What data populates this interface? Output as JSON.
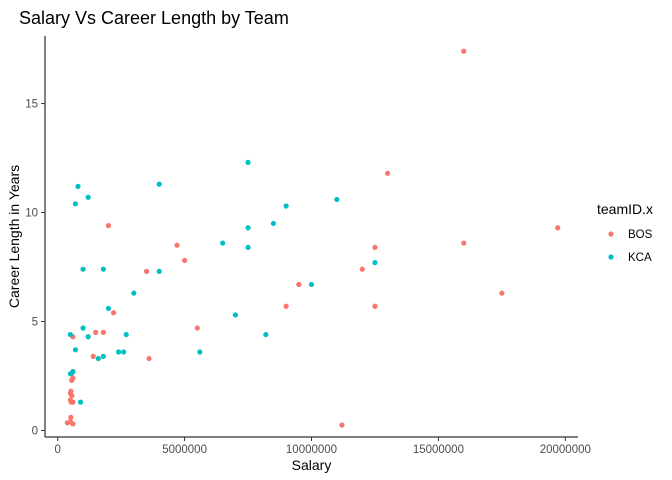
{
  "chart_data": {
    "type": "scatter",
    "title": "Salary Vs Career Length by Team",
    "xlabel": "Salary",
    "ylabel": "Career Length in Years",
    "xlim": [
      -500000,
      20500000
    ],
    "ylim": [
      -0.3,
      18.1
    ],
    "x_ticks": [
      0,
      5000000,
      10000000,
      15000000,
      20000000
    ],
    "x_tick_labels": [
      "0",
      "5000000",
      "10000000",
      "15000000",
      "20000000"
    ],
    "y_ticks": [
      0,
      5,
      10,
      15
    ],
    "y_tick_labels": [
      "0",
      "5",
      "10",
      "15"
    ],
    "grid": false,
    "legend": {
      "title": "teamID.x",
      "position": "right"
    },
    "series": [
      {
        "name": "BOS",
        "color": "#F8766D",
        "points": [
          [
            16000000,
            17.4
          ],
          [
            13000000,
            11.8
          ],
          [
            19700000,
            9.3
          ],
          [
            16000000,
            8.6
          ],
          [
            12500000,
            8.4
          ],
          [
            2000000,
            9.4
          ],
          [
            4700000,
            8.5
          ],
          [
            5000000,
            7.8
          ],
          [
            12000000,
            7.4
          ],
          [
            3500000,
            7.3
          ],
          [
            9500000,
            6.7
          ],
          [
            17500000,
            6.3
          ],
          [
            9000000,
            5.7
          ],
          [
            12500000,
            5.7
          ],
          [
            2200000,
            5.4
          ],
          [
            5500000,
            4.7
          ],
          [
            1500000,
            4.5
          ],
          [
            1800000,
            4.5
          ],
          [
            600000,
            4.3
          ],
          [
            1400000,
            3.4
          ],
          [
            3600000,
            3.3
          ],
          [
            11200000,
            0.25
          ],
          [
            600000,
            2.7
          ],
          [
            550000,
            2.6
          ],
          [
            600000,
            2.4
          ],
          [
            550000,
            2.3
          ],
          [
            520000,
            1.8
          ],
          [
            500000,
            1.7
          ],
          [
            560000,
            1.6
          ],
          [
            500000,
            1.4
          ],
          [
            530000,
            1.3
          ],
          [
            600000,
            1.3
          ],
          [
            520000,
            0.6
          ],
          [
            500000,
            0.4
          ],
          [
            380000,
            0.35
          ],
          [
            600000,
            0.3
          ]
        ]
      },
      {
        "name": "KCA",
        "color": "#00BFC4",
        "points": [
          [
            7500000,
            12.3
          ],
          [
            800000,
            11.2
          ],
          [
            4000000,
            11.3
          ],
          [
            1200000,
            10.7
          ],
          [
            700000,
            10.4
          ],
          [
            11000000,
            10.6
          ],
          [
            9000000,
            10.3
          ],
          [
            8500000,
            9.5
          ],
          [
            7500000,
            9.3
          ],
          [
            6500000,
            8.6
          ],
          [
            7500000,
            8.4
          ],
          [
            12500000,
            7.7
          ],
          [
            10000000,
            6.7
          ],
          [
            1000000,
            7.4
          ],
          [
            1800000,
            7.4
          ],
          [
            4000000,
            7.3
          ],
          [
            3000000,
            6.3
          ],
          [
            2000000,
            5.6
          ],
          [
            7000000,
            5.3
          ],
          [
            1000000,
            4.7
          ],
          [
            500000,
            4.4
          ],
          [
            1200000,
            4.3
          ],
          [
            2700000,
            4.4
          ],
          [
            8200000,
            4.4
          ],
          [
            700000,
            3.7
          ],
          [
            5600000,
            3.6
          ],
          [
            2400000,
            3.6
          ],
          [
            2600000,
            3.6
          ],
          [
            1800000,
            3.4
          ],
          [
            1600000,
            3.3
          ],
          [
            500000,
            2.6
          ],
          [
            900000,
            1.3
          ],
          [
            600000,
            2.7
          ]
        ]
      }
    ]
  }
}
